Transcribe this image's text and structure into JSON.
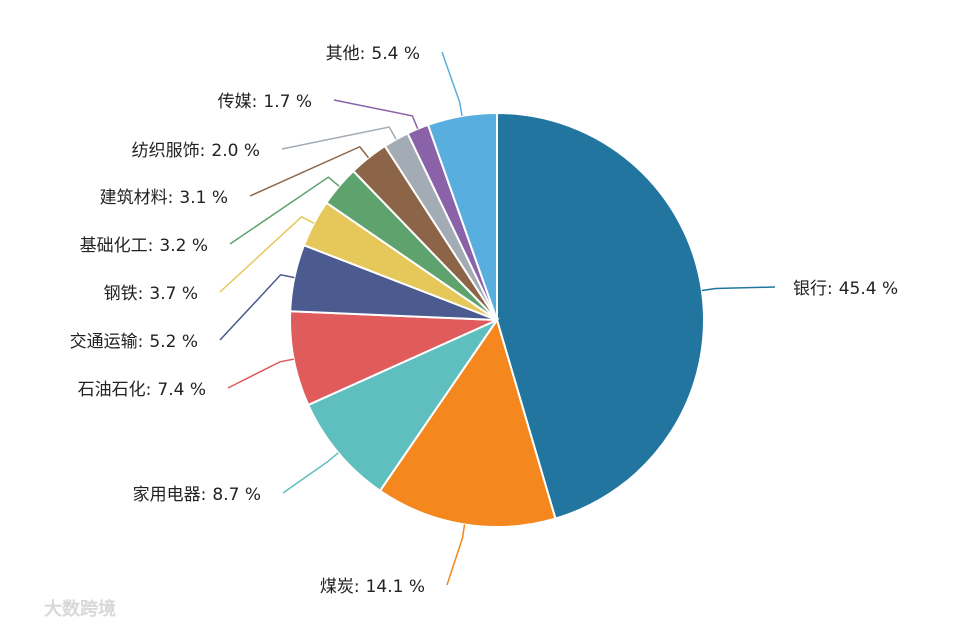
{
  "chart_data": {
    "type": "pie",
    "categories": [
      "银行",
      "煤炭",
      "家用电器",
      "石油石化",
      "交通运输",
      "钢铁",
      "基础化工",
      "建筑材料",
      "纺织服饰",
      "传媒",
      "其他"
    ],
    "values": [
      45.4,
      14.1,
      8.7,
      7.4,
      5.2,
      3.7,
      3.2,
      3.1,
      2.0,
      1.7,
      5.4
    ],
    "value_labels": [
      "45.4 %",
      "14.1 %",
      "8.7 %",
      "7.4 %",
      "5.2 %",
      "3.7 %",
      "3.2 %",
      "3.1 %",
      "2.0 %",
      "1.7 %",
      "5.4 %"
    ],
    "label_separator": ":",
    "colors": [
      "#21759f",
      "#f5871f",
      "#5fbfbf",
      "#e05c5c",
      "#4b5a8f",
      "#e6c75a",
      "#5ea26e",
      "#8c6548",
      "#a3acb5",
      "#8a62a8",
      "#58aede"
    ]
  },
  "watermark": "大数跨境"
}
